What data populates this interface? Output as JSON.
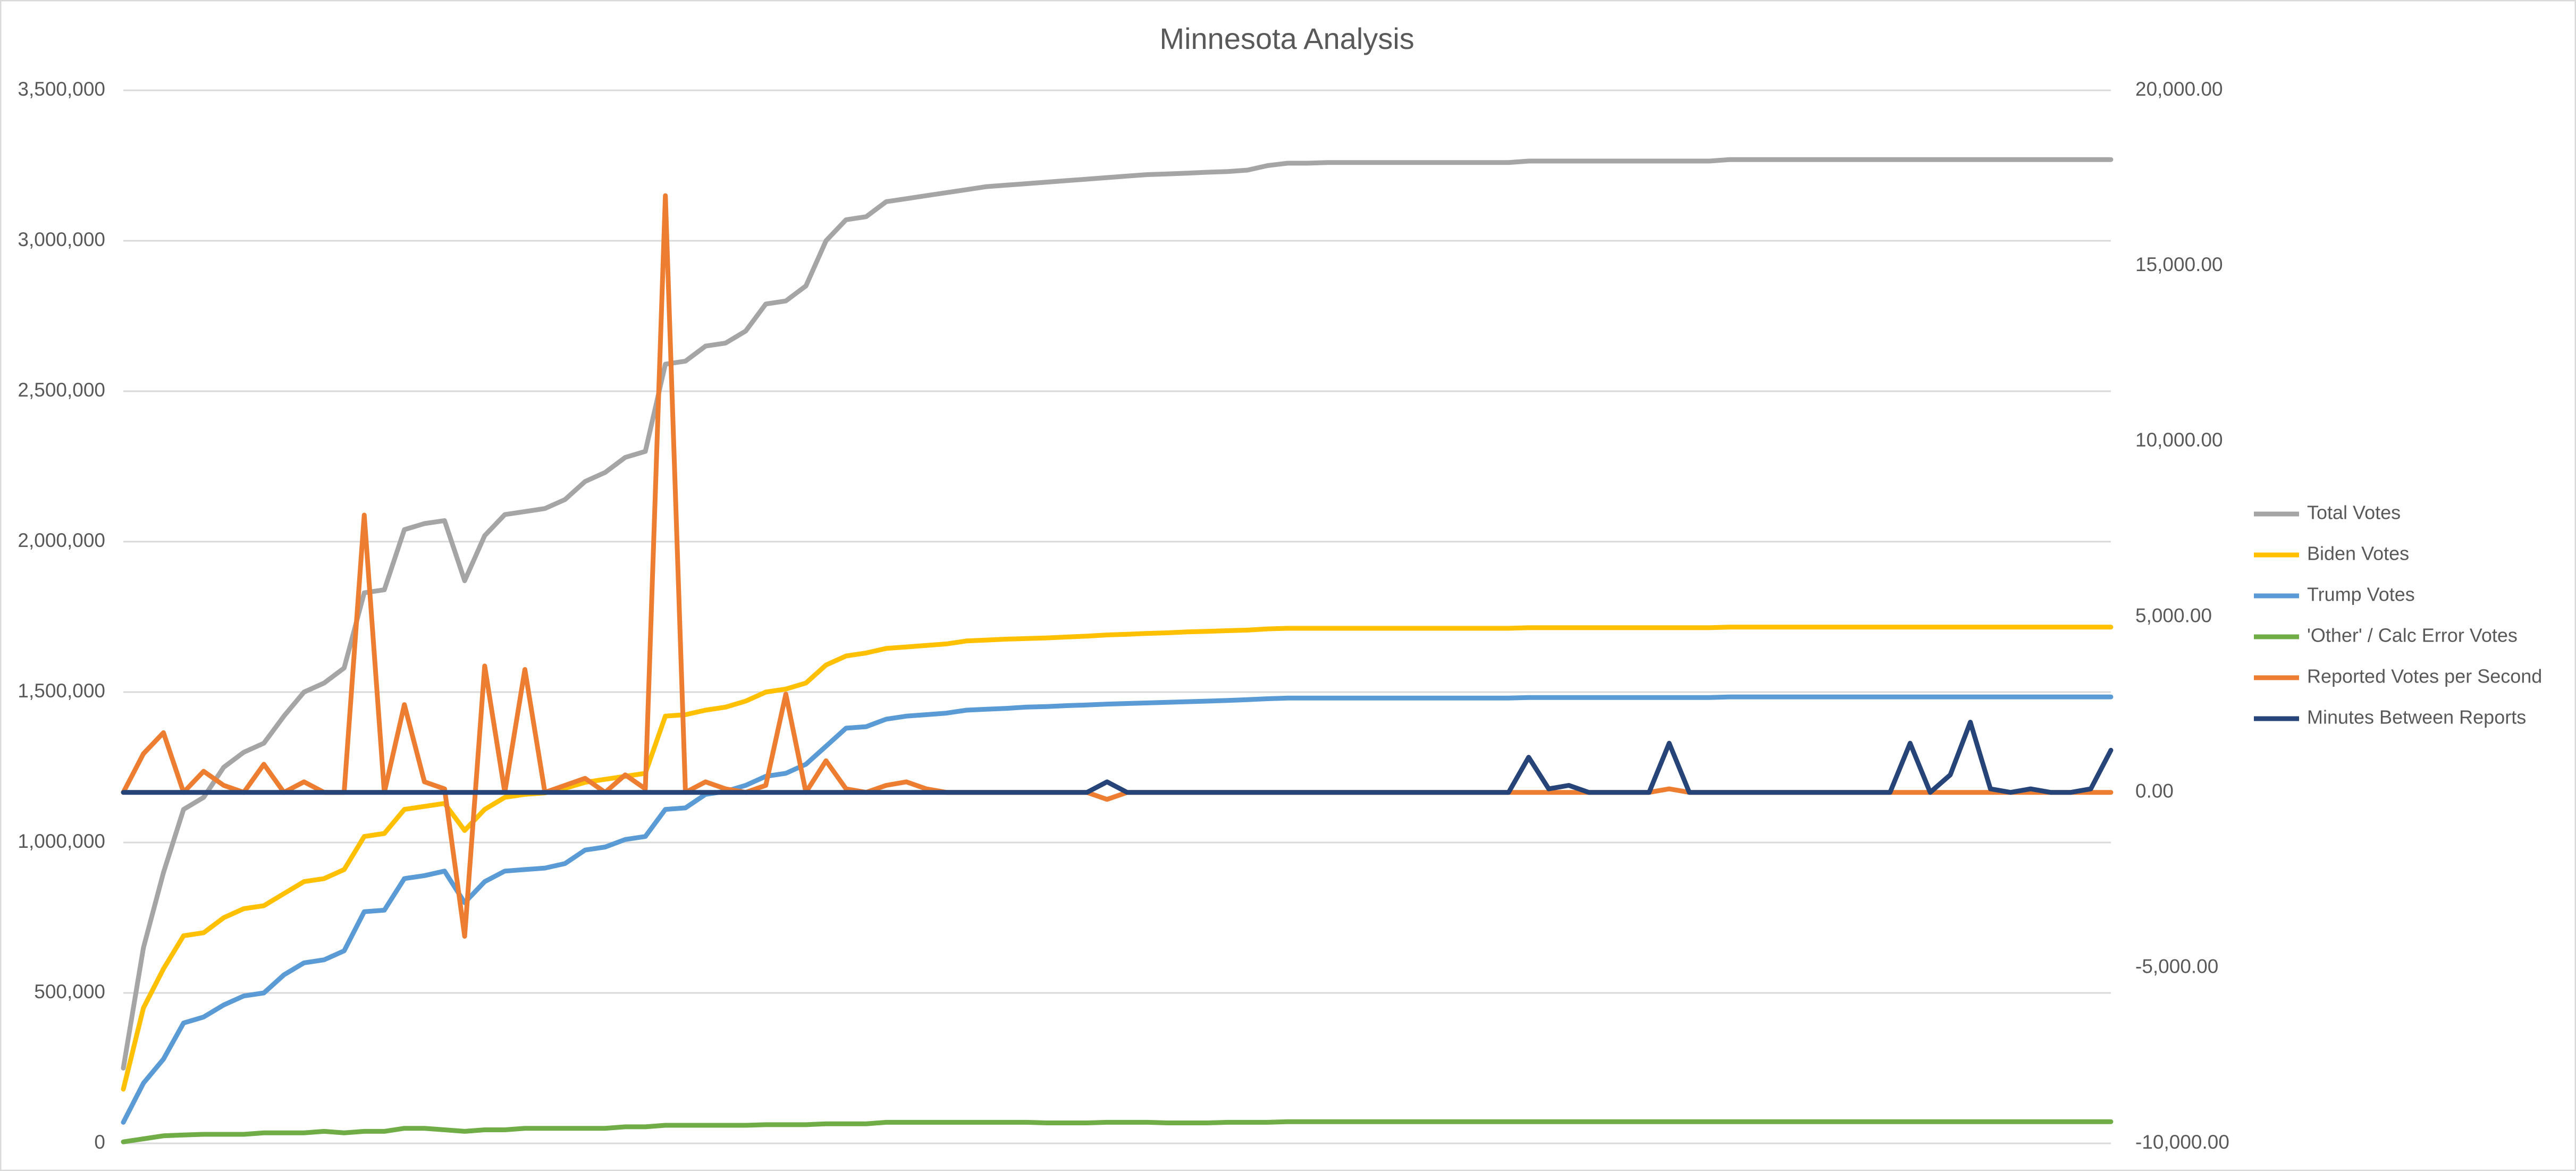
{
  "chart_data": {
    "type": "line",
    "title": "Minnesota Analysis",
    "grid": true,
    "legend": "right",
    "categories": [
      null,
      null,
      null,
      null,
      null,
      null,
      null,
      null,
      null,
      null,
      null,
      null,
      null,
      null,
      null,
      null,
      null,
      null,
      null,
      null,
      null,
      null,
      null,
      null,
      null,
      null,
      null,
      null,
      null,
      null,
      null,
      null,
      null,
      null,
      null,
      null,
      null,
      null,
      null,
      null,
      null,
      null,
      null,
      null,
      null,
      null,
      null,
      null,
      null,
      null,
      null,
      null,
      null,
      null,
      null,
      null,
      null,
      null,
      null,
      null,
      null,
      null,
      null,
      null,
      null,
      null,
      null,
      null,
      null,
      null,
      null,
      null,
      null,
      null,
      null,
      null,
      null,
      null,
      null,
      null,
      null,
      null,
      null,
      null,
      null,
      null,
      null,
      null,
      null,
      null,
      null,
      null,
      null,
      null,
      null,
      null,
      null,
      null,
      null,
      null
    ],
    "ylim": [
      0,
      3500000
    ],
    "yticks": [
      0,
      {
        "value": 500000,
        "label": "500,000"
      },
      {
        "value": 1000000,
        "label": "1,000,000"
      },
      {
        "value": 1500000,
        "label": "1,500,000"
      },
      {
        "value": 2000000,
        "label": "2,000,000"
      },
      {
        "value": 2500000,
        "label": "2,500,000"
      },
      {
        "value": 3000000,
        "label": "3,000,000"
      },
      {
        "value": 3500000,
        "label": "3,500,000"
      }
    ],
    "y2lim": [
      -10000,
      20000
    ],
    "y2ticks": [
      {
        "value": -10000,
        "label": "-10,000.00"
      },
      {
        "value": -5000,
        "label": "-5,000.00"
      },
      {
        "value": 0,
        "label": "0.00"
      },
      {
        "value": 5000,
        "label": "5,000.00"
      },
      {
        "value": 10000,
        "label": "10,000.00"
      },
      {
        "value": 15000,
        "label": "15,000.00"
      },
      {
        "value": 20000,
        "label": "20,000.00"
      }
    ],
    "series": [
      {
        "name": "Total Votes",
        "color": "#a5a5a5",
        "values": [
          250000,
          650000,
          900000,
          1110000,
          1150000,
          1250000,
          1300000,
          1330000,
          1420000,
          1500000,
          1530000,
          1580000,
          1830000,
          1840000,
          2040000,
          2060000,
          2070000,
          1870000,
          2020000,
          2090000,
          2100000,
          2110000,
          2140000,
          2200000,
          2230000,
          2280000,
          2300000,
          2590000,
          2600000,
          2650000,
          2660000,
          2700000,
          2790000,
          2800000,
          2850000,
          3000000,
          3070000,
          3080000,
          3130000,
          3140000,
          3150000,
          3160000,
          3170000,
          3180000,
          3185000,
          3190000,
          3195000,
          3200000,
          3205000,
          3210000,
          3215000,
          3220000,
          3222000,
          3225000,
          3228000,
          3230000,
          3235000,
          3250000,
          3258000,
          3258000,
          3260000,
          3260000,
          3260000,
          3260000,
          3260000,
          3260000,
          3260000,
          3260000,
          3260000,
          3260000,
          3265000,
          3265000,
          3265000,
          3265000,
          3265000,
          3265000,
          3265000,
          3265000,
          3265000,
          3265000,
          3270000,
          3270000,
          3270000,
          3270000,
          3270000,
          3270000,
          3270000,
          3270000,
          3270000,
          3270000,
          3270000,
          3270000,
          3270000,
          3270000,
          3270000,
          3270000,
          3270000,
          3270000,
          3270000,
          3270000
        ]
      },
      {
        "name": "Biden Votes",
        "color": "#ffc000",
        "values": [
          180000,
          450000,
          580000,
          690000,
          700000,
          750000,
          780000,
          790000,
          830000,
          870000,
          880000,
          910000,
          1020000,
          1030000,
          1110000,
          1120000,
          1130000,
          1040000,
          1110000,
          1150000,
          1160000,
          1165000,
          1180000,
          1200000,
          1210000,
          1220000,
          1230000,
          1420000,
          1425000,
          1440000,
          1450000,
          1470000,
          1500000,
          1510000,
          1530000,
          1590000,
          1620000,
          1630000,
          1645000,
          1650000,
          1655000,
          1660000,
          1670000,
          1673000,
          1676000,
          1678000,
          1680000,
          1683000,
          1686000,
          1690000,
          1692000,
          1695000,
          1697000,
          1700000,
          1702000,
          1704000,
          1706000,
          1710000,
          1712000,
          1712000,
          1712000,
          1712000,
          1712000,
          1712000,
          1712000,
          1712000,
          1712000,
          1712000,
          1712000,
          1712000,
          1714000,
          1714000,
          1714000,
          1714000,
          1714000,
          1714000,
          1714000,
          1714000,
          1714000,
          1714000,
          1716000,
          1716000,
          1716000,
          1716000,
          1716000,
          1716000,
          1716000,
          1716000,
          1716000,
          1716000,
          1716000,
          1716000,
          1716000,
          1716000,
          1716000,
          1716000,
          1716000,
          1716000,
          1716000,
          1716000
        ]
      },
      {
        "name": "Trump Votes",
        "color": "#5b9bd5",
        "values": [
          70000,
          200000,
          280000,
          400000,
          420000,
          460000,
          490000,
          500000,
          560000,
          600000,
          610000,
          640000,
          770000,
          775000,
          880000,
          890000,
          905000,
          800000,
          870000,
          905000,
          910000,
          915000,
          930000,
          975000,
          985000,
          1010000,
          1020000,
          1110000,
          1115000,
          1160000,
          1170000,
          1190000,
          1220000,
          1230000,
          1260000,
          1320000,
          1380000,
          1385000,
          1410000,
          1420000,
          1425000,
          1430000,
          1440000,
          1443000,
          1446000,
          1450000,
          1452000,
          1455000,
          1457000,
          1460000,
          1462000,
          1464000,
          1466000,
          1468000,
          1470000,
          1472000,
          1475000,
          1478000,
          1480000,
          1480000,
          1480000,
          1480000,
          1480000,
          1480000,
          1480000,
          1480000,
          1480000,
          1480000,
          1480000,
          1480000,
          1482000,
          1482000,
          1482000,
          1482000,
          1482000,
          1482000,
          1482000,
          1482000,
          1482000,
          1482000,
          1484000,
          1484000,
          1484000,
          1484000,
          1484000,
          1484000,
          1484000,
          1484000,
          1484000,
          1484000,
          1484000,
          1484000,
          1484000,
          1484000,
          1484000,
          1484000,
          1484000,
          1484000,
          1484000,
          1484000
        ]
      },
      {
        "name": "'Other' / Calc Error Votes",
        "color": "#70ad47",
        "values": [
          5000,
          15000,
          25000,
          28000,
          30000,
          30000,
          30000,
          35000,
          35000,
          35000,
          40000,
          35000,
          40000,
          40000,
          50000,
          50000,
          45000,
          40000,
          45000,
          45000,
          50000,
          50000,
          50000,
          50000,
          50000,
          55000,
          55000,
          60000,
          60000,
          60000,
          60000,
          60000,
          62000,
          62000,
          62000,
          65000,
          65000,
          65000,
          70000,
          70000,
          70000,
          70000,
          70000,
          70000,
          70000,
          70000,
          68000,
          68000,
          68000,
          70000,
          70000,
          70000,
          68000,
          68000,
          68000,
          70000,
          70000,
          70000,
          72000,
          72000,
          72000,
          72000,
          72000,
          72000,
          72000,
          72000,
          72000,
          72000,
          72000,
          72000,
          72000,
          72000,
          72000,
          72000,
          72000,
          72000,
          72000,
          72000,
          72000,
          72000,
          72000,
          72000,
          72000,
          72000,
          72000,
          72000,
          72000,
          72000,
          72000,
          72000,
          72000,
          72000,
          72000,
          72000,
          72000,
          72000,
          72000,
          72000,
          72000,
          72000
        ]
      },
      {
        "name": "Reported Votes per Second",
        "color": "#ed7d31",
        "axis": "y2",
        "values": [
          0,
          1100,
          1700,
          0,
          600,
          200,
          0,
          800,
          0,
          300,
          0,
          0,
          7900,
          0,
          2500,
          300,
          100,
          -4100,
          3600,
          0,
          3500,
          0,
          200,
          400,
          0,
          500,
          100,
          17000,
          0,
          300,
          100,
          0,
          200,
          2800,
          0,
          900,
          100,
          0,
          200,
          300,
          100,
          0,
          0,
          0,
          0,
          0,
          0,
          0,
          0,
          -200,
          0,
          0,
          0,
          0,
          0,
          0,
          0,
          0,
          0,
          0,
          0,
          0,
          0,
          0,
          0,
          0,
          0,
          0,
          0,
          0,
          0,
          0,
          0,
          0,
          0,
          0,
          0,
          100,
          0,
          0,
          0,
          0,
          0,
          0,
          0,
          0,
          0,
          0,
          0,
          0,
          0,
          0,
          0,
          0,
          0,
          0,
          0,
          0,
          0,
          0
        ]
      },
      {
        "name": "Minutes Between Reports",
        "color": "#264478",
        "axis": "y2",
        "values": [
          0,
          0,
          0,
          0,
          0,
          0,
          0,
          0,
          0,
          0,
          0,
          0,
          0,
          0,
          0,
          0,
          0,
          0,
          0,
          0,
          0,
          0,
          0,
          0,
          0,
          0,
          0,
          0,
          0,
          0,
          0,
          0,
          0,
          0,
          0,
          0,
          0,
          0,
          0,
          0,
          0,
          0,
          0,
          0,
          0,
          0,
          0,
          0,
          0,
          300,
          0,
          0,
          0,
          0,
          0,
          0,
          0,
          0,
          0,
          0,
          0,
          0,
          0,
          0,
          0,
          0,
          0,
          0,
          0,
          0,
          1000,
          100,
          200,
          0,
          0,
          0,
          0,
          1400,
          0,
          0,
          0,
          0,
          0,
          0,
          0,
          0,
          0,
          0,
          0,
          1400,
          0,
          500,
          2000,
          100,
          0,
          100,
          0,
          0,
          100,
          1200
        ]
      }
    ]
  }
}
